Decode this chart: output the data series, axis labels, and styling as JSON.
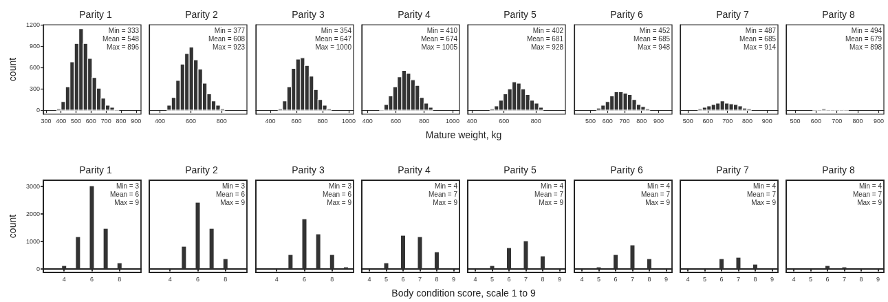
{
  "chart_data": [
    {
      "type": "histogram",
      "title": "Parity 1",
      "ylabel": "count",
      "color": "#333333",
      "bins": [
        370.4,
        400.0,
        429.6,
        459.3,
        488.9,
        518.5,
        548.2,
        577.8,
        607.4,
        637.0,
        666.7,
        696.3,
        725.9,
        755.6,
        785.2
      ],
      "values": [
        20,
        120,
        330,
        680,
        940,
        1150,
        940,
        730,
        460,
        310,
        170,
        70,
        40,
        10
      ],
      "xlim": [
        282,
        933
      ],
      "xticks": [
        300,
        400,
        500,
        600,
        700,
        800,
        900
      ],
      "ylim": [
        -57,
        1204
      ],
      "yticks": [
        0,
        300,
        600,
        900,
        1200
      ],
      "annotations": [
        "Min = 333",
        "Mean = 548",
        "Max = 896"
      ]
    },
    {
      "type": "histogram",
      "title": "Parity 2",
      "color": "#333333",
      "bins": [
        445.5,
        474.2,
        503.0,
        531.7,
        560.4,
        589.2,
        617.9,
        646.7,
        675.4,
        704.1,
        732.9,
        761.6,
        790.4,
        819.1
      ],
      "values": [
        70,
        180,
        420,
        650,
        800,
        890,
        710,
        580,
        380,
        230,
        130,
        70,
        20
      ],
      "xlim": [
        331,
        963
      ],
      "xticks": [
        400,
        600,
        800
      ],
      "ylim": [
        -57,
        1204
      ],
      "yticks": [
        0,
        300,
        600,
        900,
        1200
      ],
      "tick_labels": "x",
      "annotations": [
        "Min = 377",
        "Mean = 608",
        "Max = 923"
      ]
    },
    {
      "type": "histogram",
      "title": "Parity 3",
      "color": "#333333",
      "bins": [
        459,
        493,
        527,
        561,
        595,
        629,
        663,
        697,
        731,
        765,
        799,
        833,
        867
      ],
      "values": [
        20,
        130,
        330,
        590,
        720,
        740,
        630,
        480,
        290,
        150,
        70,
        20
      ],
      "xlim": [
        289,
        1037
      ],
      "xticks": [
        400,
        600,
        800,
        1000
      ],
      "ylim": [
        -57,
        1204
      ],
      "yticks": [
        0,
        300,
        600,
        900,
        1200
      ],
      "tick_labels": "x",
      "annotations": [
        "Min = 354",
        "Mean = 647",
        "Max = 1000"
      ]
    },
    {
      "type": "histogram",
      "title": "Parity 4",
      "xlabel": "Mature weight, kg",
      "color": "#333333",
      "bins": [
        485.5,
        516.8,
        548.1,
        579.4,
        610.7,
        642.1,
        673.4,
        704.7,
        736.0,
        767.3,
        798.7,
        830.0,
        861.3
      ],
      "values": [
        10,
        80,
        200,
        330,
        470,
        560,
        520,
        430,
        350,
        180,
        100,
        40
      ],
      "xlim": [
        360,
        1049
      ],
      "xticks": [
        400,
        600,
        800,
        1000
      ],
      "ylim": [
        -57,
        1204
      ],
      "yticks": [
        0,
        300,
        600,
        900,
        1200
      ],
      "tick_labels": "x",
      "annotations": [
        "Min = 410",
        "Mean = 674",
        "Max = 1005"
      ]
    },
    {
      "type": "histogram",
      "title": "Parity 5",
      "color": "#333333",
      "bins": [
        512.1,
        539.8,
        567.4,
        595.1,
        622.8,
        650.5,
        678.2,
        705.8,
        733.5,
        761.2,
        788.9,
        816.6,
        844.2
      ],
      "values": [
        20,
        60,
        140,
        230,
        300,
        400,
        380,
        300,
        220,
        140,
        100,
        40
      ],
      "xlim": [
        374,
        983
      ],
      "xticks": [
        400,
        600,
        800
      ],
      "ylim": [
        -57,
        1204
      ],
      "yticks": [
        0,
        300,
        600,
        900,
        1200
      ],
      "tick_labels": "x",
      "annotations": [
        "Min = 402",
        "Mean = 681",
        "Max = 928"
      ]
    },
    {
      "type": "histogram",
      "title": "Parity 6",
      "color": "#333333",
      "bins": [
        535.1,
        561.2,
        587.3,
        613.4,
        639.5,
        665.6,
        691.7,
        717.8,
        743.9,
        770.0,
        796.1,
        822.2,
        848.3
      ],
      "values": [
        30,
        70,
        120,
        200,
        260,
        260,
        240,
        220,
        150,
        80,
        50,
        20
      ],
      "xlim": [
        405,
        979
      ],
      "xticks": [
        500,
        600,
        700,
        800,
        900
      ],
      "ylim": [
        -57,
        1204
      ],
      "yticks": [
        0,
        300,
        600,
        900,
        1200
      ],
      "tick_labels": "x",
      "annotations": [
        "Min = 452",
        "Mean = 685",
        "Max = 948"
      ]
    },
    {
      "type": "histogram",
      "title": "Parity 7",
      "color": "#333333",
      "bins": [
        550.5,
        573.0,
        595.5,
        617.9,
        640.4,
        662.9,
        685.3,
        707.8,
        730.3,
        752.8,
        775.2,
        797.7,
        820.2
      ],
      "values": [
        20,
        40,
        60,
        80,
        100,
        130,
        100,
        90,
        80,
        60,
        30,
        20
      ],
      "xlim": [
        461,
        955
      ],
      "xticks": [
        500,
        600,
        700,
        800,
        900
      ],
      "ylim": [
        -57,
        1204
      ],
      "yticks": [
        0,
        300,
        600,
        900,
        1200
      ],
      "tick_labels": "x",
      "annotations": [
        "Min = 487",
        "Mean = 685",
        "Max = 914"
      ]
    },
    {
      "type": "histogram",
      "title": "Parity 8",
      "color": "#333333",
      "bins": [
        584.7,
        605.9,
        627.2,
        648.4,
        669.7,
        690.9,
        712.2,
        733.4,
        754.7
      ],
      "values": [
        10,
        10,
        20,
        10,
        10,
        10,
        10,
        10
      ],
      "xlim": [
        457,
        925
      ],
      "xticks": [
        500,
        600,
        700,
        800,
        900
      ],
      "ylim": [
        -57,
        1204
      ],
      "yticks": [
        0,
        300,
        600,
        900,
        1200
      ],
      "tick_labels": "x",
      "annotations": [
        "Min = 494",
        "Mean = 679",
        "Max = 898"
      ]
    },
    {
      "type": "bar",
      "title": "Parity 1",
      "ylabel": "count",
      "color": "#333333",
      "x": [
        4,
        5,
        6,
        7,
        8
      ],
      "values": [
        100,
        1150,
        3000,
        1450,
        200
      ],
      "xlim": [
        2.5,
        9.55
      ],
      "xticks": [
        4,
        6,
        8
      ],
      "ylim": [
        -135,
        3215
      ],
      "yticks": [
        0,
        1000,
        2000,
        3000
      ],
      "annotations": [
        "Min = 3",
        "Mean = 6",
        "Max = 9"
      ]
    },
    {
      "type": "bar",
      "title": "Parity 2",
      "color": "#333333",
      "x": [
        5,
        6,
        7,
        8
      ],
      "values": [
        800,
        2400,
        1450,
        350
      ],
      "xlim": [
        2.5,
        9.55
      ],
      "xticks": [
        4,
        6,
        8
      ],
      "ylim": [
        -135,
        3215
      ],
      "yticks": [
        0,
        1000,
        2000,
        3000
      ],
      "tick_labels": "x",
      "annotations": [
        "Min = 3",
        "Mean = 6",
        "Max = 9"
      ]
    },
    {
      "type": "bar",
      "title": "Parity 3",
      "color": "#333333",
      "x": [
        5,
        6,
        7,
        8,
        9
      ],
      "values": [
        500,
        1800,
        1250,
        500,
        50
      ],
      "xlim": [
        2.5,
        9.55
      ],
      "xticks": [
        4,
        6,
        8
      ],
      "ylim": [
        -135,
        3215
      ],
      "yticks": [
        0,
        1000,
        2000,
        3000
      ],
      "tick_labels": "x",
      "annotations": [
        "Min = 3",
        "Mean = 6",
        "Max = 9"
      ]
    },
    {
      "type": "bar",
      "title": "Parity 4",
      "xlabel": "Body condition score, scale 1 to 9",
      "color": "#333333",
      "x": [
        5,
        6,
        7,
        8
      ],
      "values": [
        200,
        1200,
        1150,
        600
      ],
      "xlim": [
        3.55,
        9.35
      ],
      "xticks": [
        4,
        5,
        6,
        7,
        8,
        9
      ],
      "ylim": [
        -135,
        3215
      ],
      "yticks": [
        0,
        1000,
        2000,
        3000
      ],
      "tick_labels": "x",
      "annotations": [
        "Min = 4",
        "Mean = 7",
        "Max = 9"
      ]
    },
    {
      "type": "bar",
      "title": "Parity 5",
      "color": "#333333",
      "x": [
        5,
        6,
        7,
        8
      ],
      "values": [
        100,
        750,
        1000,
        450
      ],
      "xlim": [
        3.55,
        9.35
      ],
      "xticks": [
        4,
        5,
        6,
        7,
        8,
        9
      ],
      "ylim": [
        -135,
        3215
      ],
      "yticks": [
        0,
        1000,
        2000,
        3000
      ],
      "tick_labels": "x",
      "annotations": [
        "Min = 4",
        "Mean = 7",
        "Max = 9"
      ]
    },
    {
      "type": "bar",
      "title": "Parity 6",
      "color": "#333333",
      "x": [
        5,
        6,
        7,
        8
      ],
      "values": [
        50,
        500,
        850,
        350
      ],
      "xlim": [
        3.55,
        9.35
      ],
      "xticks": [
        4,
        5,
        6,
        7,
        8,
        9
      ],
      "ylim": [
        -135,
        3215
      ],
      "yticks": [
        0,
        1000,
        2000,
        3000
      ],
      "tick_labels": "x",
      "annotations": [
        "Min = 4",
        "Mean = 7",
        "Max = 9"
      ]
    },
    {
      "type": "bar",
      "title": "Parity 7",
      "color": "#333333",
      "x": [
        6,
        7,
        8
      ],
      "values": [
        350,
        400,
        150
      ],
      "xlim": [
        3.55,
        9.35
      ],
      "xticks": [
        4,
        5,
        6,
        7,
        8,
        9
      ],
      "ylim": [
        -135,
        3215
      ],
      "yticks": [
        0,
        1000,
        2000,
        3000
      ],
      "tick_labels": "x",
      "annotations": [
        "Min = 4",
        "Mean = 7",
        "Max = 9"
      ]
    },
    {
      "type": "bar",
      "title": "Parity 8",
      "color": "#333333",
      "x": [
        6,
        7
      ],
      "values": [
        100,
        50
      ],
      "xlim": [
        3.55,
        9.35
      ],
      "xticks": [
        4,
        5,
        6,
        7,
        8,
        9
      ],
      "ylim": [
        -135,
        3215
      ],
      "yticks": [
        0,
        1000,
        2000,
        3000
      ],
      "tick_labels": "x",
      "annotations": [
        "Min = 4",
        "Mean = 7",
        "Max = 9"
      ]
    }
  ]
}
